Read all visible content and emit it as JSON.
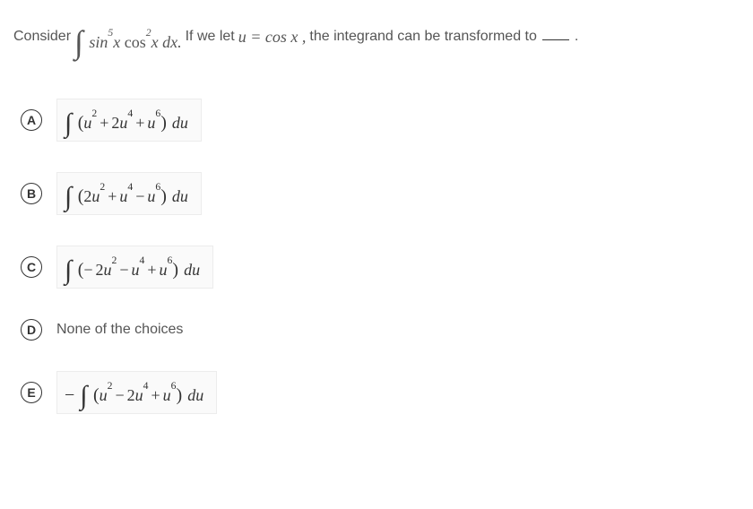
{
  "question": {
    "prefix": "Consider",
    "integral_expr_html": "<span class='integral'>∫</span> sin<sup>5</sup><span class='var'>x</span> <span class='math-upright'>cos</span><sup>2</sup><span class='var'>x</span> <span class='var'>dx</span>.",
    "middle_1": "If we let",
    "sub_expr_html": "<span class='var'>u</span> = cos <span class='var'>x</span> ,",
    "middle_2": "the integrand can be transformed to",
    "suffix": "."
  },
  "choices": [
    {
      "letter": "A",
      "type": "math",
      "boxed": true,
      "expr_html": "<span class='integral-sm'>∫</span> <span class='paren'>(</span><span class='var'>u</span><sup>2</sup><span class='op'>+</span>2<span class='var'>u</span><sup>4</sup><span class='op'>+</span><span class='var'>u</span><sup>6</sup><span class='paren'>)</span><span class='du'>du</span>"
    },
    {
      "letter": "B",
      "type": "math",
      "boxed": true,
      "expr_html": "<span class='integral-sm'>∫</span> <span class='paren'>(</span>2<span class='var'>u</span><sup>2</sup><span class='op'>+</span><span class='var'>u</span><sup>4</sup><span class='op'>−</span><span class='var'>u</span><sup>6</sup><span class='paren'>)</span><span class='du'>du</span>"
    },
    {
      "letter": "C",
      "type": "math",
      "boxed": true,
      "expr_html": "<span class='integral-sm'>∫</span> <span class='paren'>(</span><span class='op' style='padding-left:0'>−</span>2<span class='var'>u</span><sup>2</sup><span class='op'>−</span><span class='var'>u</span><sup>4</sup><span class='op'>+</span><span class='var'>u</span><sup>6</sup><span class='paren'>)</span><span class='du'>du</span>"
    },
    {
      "letter": "D",
      "type": "text",
      "boxed": false,
      "text": "None of the choices"
    },
    {
      "letter": "E",
      "type": "math",
      "boxed": true,
      "expr_html": "<span class='neg-outer'>−</span><span class='integral-sm'>∫</span> <span class='paren'>(</span><span class='var'>u</span><sup>2</sup><span class='op'>−</span>2<span class='var'>u</span><sup>4</sup><span class='op'>+</span><span class='var'>u</span><sup>6</sup><span class='paren'>)</span><span class='du'>du</span>"
    }
  ],
  "styles": {
    "bg": "#ffffff",
    "text_color": "#555555",
    "choice_box_bg": "#fafafa",
    "choice_box_border": "#ececec",
    "letter_border": "#333333",
    "body_font": "Segoe UI",
    "math_font": "Cambria Math",
    "question_fontsize": 16,
    "math_fontsize": 18,
    "integral_fontsize": 36,
    "choice_gap": 34
  }
}
